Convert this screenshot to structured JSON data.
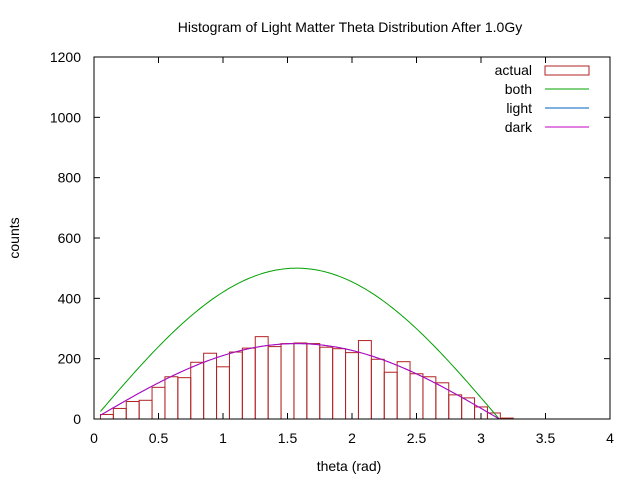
{
  "chart_data": {
    "type": "bar",
    "title": "Histogram of Light Matter Theta Distribution After 1.0Gy",
    "xlabel": "theta (rad)",
    "ylabel": "counts",
    "xlim": [
      0,
      4
    ],
    "ylim": [
      0,
      1200
    ],
    "x_ticks": [
      0,
      0.5,
      1,
      1.5,
      2,
      2.5,
      3,
      3.5,
      4
    ],
    "x_tick_labels": [
      "0",
      "0.5",
      "1",
      "1.5",
      "2",
      "2.5",
      "3",
      "3.5",
      "4"
    ],
    "y_ticks": [
      0,
      200,
      400,
      600,
      800,
      1000,
      1200
    ],
    "y_tick_labels": [
      "0",
      "200",
      "400",
      "600",
      "800",
      "1000",
      "1200"
    ],
    "legend_position": "top-right",
    "colors": {
      "actual": "#b22222",
      "both": "#00a000",
      "light": "#0060c0",
      "dark": "#c000c0",
      "axis": "#000000"
    },
    "bins": {
      "width": 0.1,
      "starts": [
        0.05,
        0.15,
        0.25,
        0.35,
        0.45,
        0.55,
        0.65,
        0.75,
        0.85,
        0.95,
        1.05,
        1.15,
        1.25,
        1.35,
        1.45,
        1.55,
        1.65,
        1.75,
        1.85,
        1.95,
        2.05,
        2.15,
        2.25,
        2.35,
        2.45,
        2.55,
        2.65,
        2.75,
        2.85,
        2.95,
        3.05,
        3.15
      ],
      "values": [
        15,
        35,
        58,
        62,
        105,
        140,
        137,
        188,
        218,
        173,
        222,
        235,
        273,
        240,
        250,
        252,
        250,
        238,
        233,
        220,
        260,
        198,
        155,
        190,
        150,
        140,
        120,
        80,
        70,
        40,
        20,
        3
      ]
    },
    "series": [
      {
        "name": "actual",
        "kind": "histogram"
      },
      {
        "name": "both",
        "kind": "line",
        "function": "500*sin(x)",
        "domain": [
          0.05,
          3.2
        ]
      },
      {
        "name": "light",
        "kind": "line",
        "function": "250*sin(x)",
        "domain": [
          0.05,
          3.2
        ]
      },
      {
        "name": "dark",
        "kind": "line",
        "function": "250*sin(x)",
        "domain": [
          0.05,
          3.2
        ]
      }
    ]
  }
}
